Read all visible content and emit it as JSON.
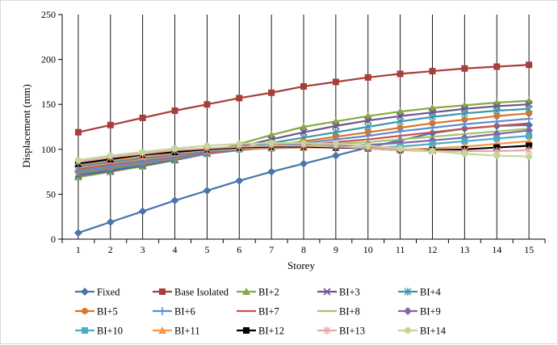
{
  "chart_data": {
    "type": "line",
    "title": "",
    "xlabel": "Storey",
    "ylabel": "Displacement (mm)",
    "x": [
      1,
      2,
      3,
      4,
      5,
      6,
      7,
      8,
      9,
      10,
      11,
      12,
      13,
      14,
      15
    ],
    "x_ticks": [
      "1",
      "2",
      "3",
      "4",
      "5",
      "6",
      "7",
      "8",
      "9",
      "10",
      "11",
      "12",
      "13",
      "14",
      "15"
    ],
    "ylim": [
      0,
      250
    ],
    "y_ticks": [
      "0",
      "50",
      "100",
      "150",
      "200",
      "250"
    ],
    "grid": "vertical lines at each storey",
    "legend_position": "bottom",
    "series": [
      {
        "name": "Fixed",
        "color": "#4a74aa",
        "marker": "diamond",
        "values": [
          7,
          19,
          31,
          43,
          54,
          65,
          75,
          84,
          93,
          102,
          110,
          118,
          123,
          126,
          127
        ]
      },
      {
        "name": "Base Isolated",
        "color": "#a93d3a",
        "marker": "square",
        "values": [
          119,
          127,
          135,
          143,
          150,
          157,
          163,
          170,
          175,
          180,
          184,
          187,
          190,
          192,
          194
        ]
      },
      {
        "name": "BI+2",
        "color": "#86a845",
        "marker": "triangle",
        "values": [
          69,
          75,
          81,
          88,
          96,
          106,
          116,
          125,
          131,
          137,
          142,
          146,
          149,
          152,
          154
        ]
      },
      {
        "name": "BI+3",
        "color": "#6f548f",
        "marker": "x",
        "values": [
          71,
          76,
          82,
          88,
          95,
          103,
          111,
          119,
          126,
          132,
          137,
          141,
          145,
          148,
          150
        ]
      },
      {
        "name": "BI+4",
        "color": "#3b97ad",
        "marker": "asterisk",
        "values": [
          73,
          78,
          83,
          89,
          95,
          101,
          107,
          113,
          119,
          125,
          131,
          136,
          140,
          143,
          145
        ]
      },
      {
        "name": "BI+5",
        "color": "#d3782c",
        "marker": "circle",
        "values": [
          75,
          80,
          85,
          90,
          95,
          100,
          104,
          109,
          114,
          119,
          124,
          129,
          133,
          137,
          140
        ]
      },
      {
        "name": "BI+6",
        "color": "#5e8ad0",
        "marker": "plus",
        "values": [
          76,
          81,
          86,
          91,
          95,
          99,
          103,
          107,
          111,
          115,
          120,
          124,
          128,
          131,
          134
        ]
      },
      {
        "name": "BI+7",
        "color": "#c9524f",
        "marker": "none",
        "values": [
          78,
          83,
          88,
          92,
          96,
          99,
          102,
          105,
          108,
          111,
          115,
          119,
          123,
          126,
          129
        ]
      },
      {
        "name": "BI+8",
        "color": "#a5c46a",
        "marker": "none",
        "values": [
          80,
          85,
          89,
          93,
          97,
          100,
          102,
          104,
          106,
          108,
          111,
          114,
          117,
          120,
          123
        ]
      },
      {
        "name": "BI+9",
        "color": "#8266a8",
        "marker": "diamond",
        "values": [
          81,
          86,
          90,
          94,
          97,
          100,
          102,
          103,
          104,
          105,
          107,
          110,
          113,
          117,
          121
        ]
      },
      {
        "name": "BI+10",
        "color": "#4bacc6",
        "marker": "square",
        "values": [
          82,
          87,
          91,
          95,
          98,
          100,
          101,
          102,
          102,
          102,
          103,
          106,
          109,
          112,
          115
        ]
      },
      {
        "name": "BI+11",
        "color": "#f79646",
        "marker": "triangle",
        "values": [
          83,
          88,
          92,
          96,
          99,
          101,
          102,
          102,
          102,
          101,
          100,
          101,
          103,
          106,
          109
        ]
      },
      {
        "name": "BI+12",
        "color": "#000000",
        "marker": "square",
        "values": [
          84,
          89,
          94,
          97,
          100,
          102,
          103,
          103,
          102,
          101,
          99,
          99,
          100,
          102,
          104
        ]
      },
      {
        "name": "BI+13",
        "color": "#e6a8a6",
        "marker": "asterisk",
        "values": [
          86,
          91,
          95,
          99,
          101,
          103,
          104,
          104,
          103,
          101,
          99,
          98,
          98,
          98,
          99
        ]
      },
      {
        "name": "BI+14",
        "color": "#c4d79b",
        "marker": "circle",
        "values": [
          88,
          93,
          97,
          101,
          104,
          106,
          107,
          107,
          106,
          104,
          101,
          98,
          95,
          93,
          92
        ]
      }
    ]
  }
}
